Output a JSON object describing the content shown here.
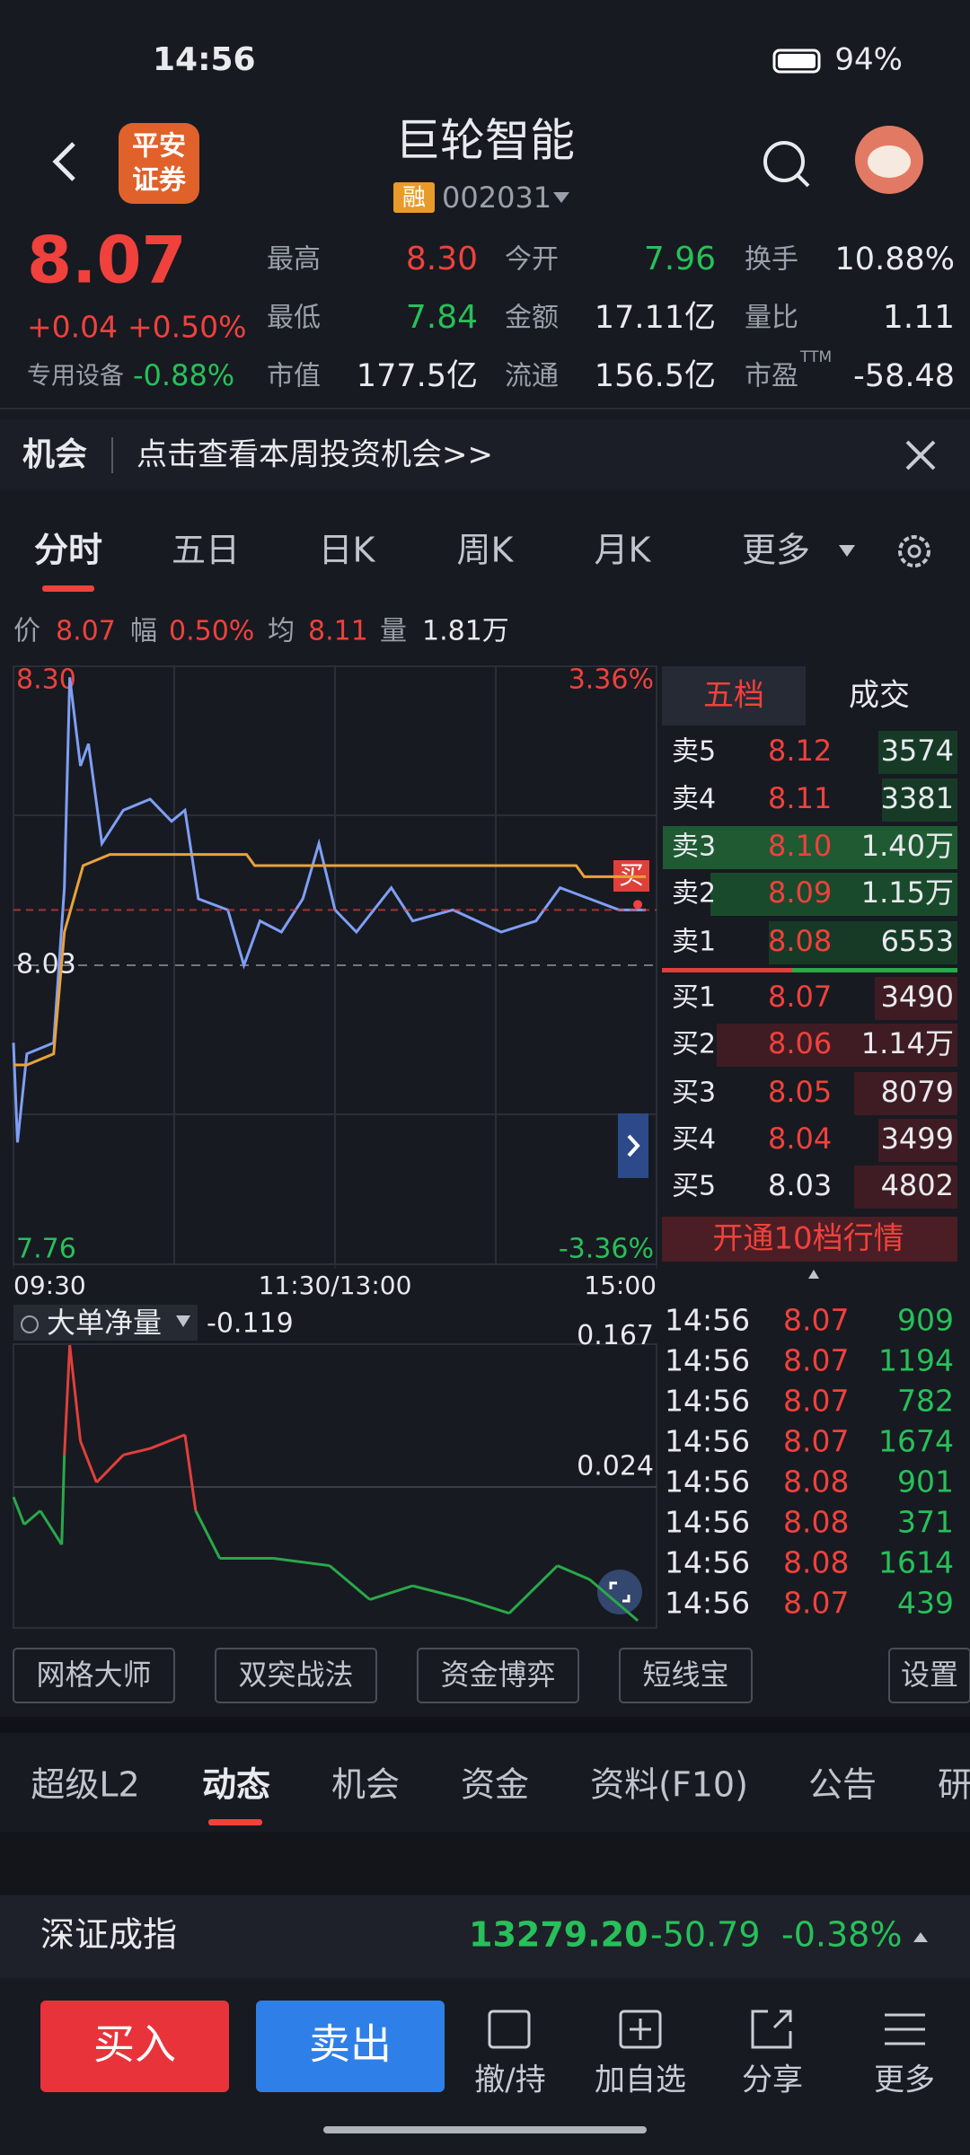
{
  "status_bar": {
    "time": "14:56",
    "battery": "94%"
  },
  "header": {
    "title": "巨轮智能",
    "broker_logo": [
      "平安",
      "证券"
    ],
    "badge": "融",
    "code": "002031"
  },
  "quote": {
    "price": "8.07",
    "change": "+0.04",
    "change_pct": "+0.50%",
    "sector": "专用设备",
    "sector_change": "-0.88%",
    "stats": [
      {
        "label": "最高",
        "value": "8.30",
        "color": "#f0413c"
      },
      {
        "label": "今开",
        "value": "7.96",
        "color": "#27c05a"
      },
      {
        "label": "换手",
        "value": "10.88%",
        "color": "#e8eaee"
      },
      {
        "label": "最低",
        "value": "7.84",
        "color": "#27c05a"
      },
      {
        "label": "金额",
        "value": "17.11亿",
        "color": "#e8eaee"
      },
      {
        "label": "量比",
        "value": "1.11",
        "color": "#e8eaee"
      },
      {
        "label": "市值",
        "value": "177.5亿",
        "color": "#e8eaee"
      },
      {
        "label": "流通",
        "value": "156.5亿",
        "color": "#e8eaee"
      },
      {
        "label": "市盈",
        "label_sup": "TTM",
        "value": "-58.48",
        "color": "#e8eaee"
      }
    ]
  },
  "banner": {
    "tag": "机会",
    "text": "点击查看本周投资机会>>"
  },
  "tabs": [
    "分时",
    "五日",
    "日K",
    "周K",
    "月K",
    "更多"
  ],
  "info": [
    {
      "label": "价",
      "value": "8.07",
      "color": "#f0413c"
    },
    {
      "label": "幅",
      "value": "0.50%",
      "color": "#f0413c"
    },
    {
      "label": "均",
      "value": "8.11",
      "color": "#f0413c"
    },
    {
      "label": "量",
      "value": "1.81万",
      "color": "#e8eaee"
    }
  ],
  "order_book": {
    "tabs": [
      "五档",
      "成交"
    ],
    "asks": [
      {
        "label": "卖5",
        "price": "8.12",
        "volume": "3574"
      },
      {
        "label": "卖4",
        "price": "8.11",
        "volume": "3381"
      },
      {
        "label": "卖3",
        "price": "8.10",
        "volume": "1.40万"
      },
      {
        "label": "卖2",
        "price": "8.09",
        "volume": "1.15万"
      },
      {
        "label": "卖1",
        "price": "8.08",
        "volume": "6553"
      }
    ],
    "bids": [
      {
        "label": "买1",
        "price": "8.07",
        "volume": "3490"
      },
      {
        "label": "买2",
        "price": "8.06",
        "volume": "1.14万"
      },
      {
        "label": "买3",
        "price": "8.05",
        "volume": "8079"
      },
      {
        "label": "买4",
        "price": "8.04",
        "volume": "3499"
      },
      {
        "label": "买5",
        "price": "8.03",
        "volume": "4802"
      }
    ],
    "footer": "开通10档行情",
    "marker": "买"
  },
  "trades": [
    {
      "time": "14:56",
      "price": "8.07",
      "volume": "909"
    },
    {
      "time": "14:56",
      "price": "8.07",
      "volume": "1194"
    },
    {
      "time": "14:56",
      "price": "8.07",
      "volume": "782"
    },
    {
      "time": "14:56",
      "price": "8.07",
      "volume": "1674"
    },
    {
      "time": "14:56",
      "price": "8.08",
      "volume": "901"
    },
    {
      "time": "14:56",
      "price": "8.08",
      "volume": "371"
    },
    {
      "time": "14:56",
      "price": "8.08",
      "volume": "1614"
    },
    {
      "time": "14:56",
      "price": "8.07",
      "volume": "439"
    }
  ],
  "indicator": {
    "name": "大单净量",
    "value": "-0.119"
  },
  "tool_buttons": [
    "网格大师",
    "双突战法",
    "资金博弈",
    "短线宝",
    "设置"
  ],
  "bottom_tabs": [
    "超级L2",
    "动态",
    "机会",
    "资金",
    "资料(F10)",
    "公告",
    "研"
  ],
  "index": {
    "name": "深证成指",
    "value": "13279.20",
    "change": "-50.79",
    "change_pct": "-0.38%"
  },
  "actions": {
    "buy": "买入",
    "sell": "卖出",
    "items": [
      "撤/持",
      "加自选",
      "分享",
      "更多"
    ]
  },
  "chart_data": [
    {
      "type": "line",
      "xlim": [
        0,
        240
      ],
      "xticks": [
        {
          "value": 0,
          "label": "09:30"
        },
        {
          "value": 120,
          "label": "11:30/13:00"
        },
        {
          "value": 240,
          "label": "15:00"
        }
      ],
      "ylim": [
        7.76,
        8.3
      ],
      "yticks": [
        {
          "value": 8.3,
          "label": "8.30"
        },
        8.03,
        7.76
      ],
      "y2lim": [
        -3.36,
        3.36
      ],
      "y2ticks": [
        {
          "value": 3.36,
          "label": "3.36%"
        },
        {
          "value": -3.36,
          "label": "-3.36%"
        }
      ],
      "series": [
        {
          "color": "#7f9ff5",
          "x": [
            0,
            1.5,
            5,
            15,
            19,
            21,
            25,
            28,
            33,
            41,
            51,
            59,
            64,
            69,
            80,
            86,
            92,
            100,
            108,
            114,
            120,
            128,
            141,
            149,
            164,
            182,
            195,
            204,
            215,
            226,
            236
          ],
          "values": [
            7.96,
            7.87,
            7.95,
            7.96,
            8.1,
            8.29,
            8.21,
            8.23,
            8.14,
            8.17,
            8.18,
            8.16,
            8.17,
            8.09,
            8.08,
            8.03,
            8.07,
            8.06,
            8.09,
            8.14,
            8.08,
            8.06,
            8.1,
            8.07,
            8.08,
            8.06,
            8.07,
            8.1,
            8.09,
            8.08,
            8.08
          ]
        },
        {
          "color": "#e9a23b",
          "x": [
            0,
            5,
            15,
            19,
            26,
            36,
            87,
            90,
            210,
            213,
            236
          ],
          "values": [
            7.94,
            7.94,
            7.95,
            8.06,
            8.12,
            8.13,
            8.13,
            8.12,
            8.12,
            8.11,
            8.11
          ]
        }
      ]
    },
    {
      "type": "line",
      "xlim": [
        0,
        240
      ],
      "ylim": [
        -0.13,
        0.18
      ],
      "yticks": [
        0.167,
        0.024
      ],
      "series": [
        {
          "color": "#2aa84a",
          "up_color": "#e0403a",
          "x": [
            0,
            4,
            10,
            18,
            19,
            21,
            25,
            31,
            41,
            51,
            64,
            68,
            77,
            97,
            118,
            133,
            149,
            169,
            185,
            203,
            215,
            233
          ],
          "values": [
            0.013,
            -0.017,
            -0.002,
            -0.039,
            0.059,
            0.179,
            0.074,
            0.029,
            0.059,
            0.066,
            0.081,
            -0.002,
            -0.054,
            -0.054,
            -0.062,
            -0.099,
            -0.084,
            -0.099,
            -0.114,
            -0.062,
            -0.077,
            -0.122
          ]
        }
      ]
    }
  ]
}
